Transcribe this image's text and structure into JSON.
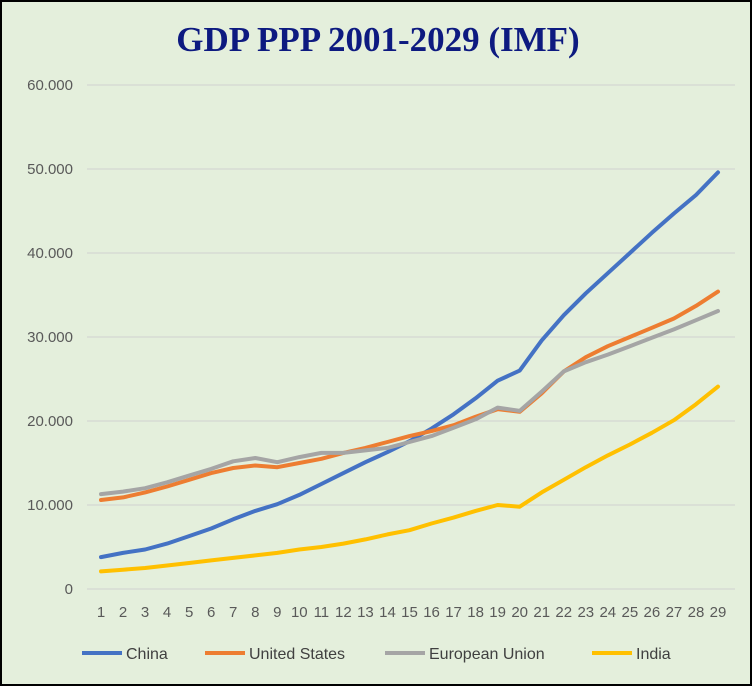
{
  "chart_data": {
    "type": "line",
    "title": "GDP PPP 2001-2029 (IMF)",
    "xlabel": "",
    "ylabel": "",
    "x": [
      "1",
      "2",
      "3",
      "4",
      "5",
      "6",
      "7",
      "8",
      "9",
      "10",
      "11",
      "12",
      "13",
      "14",
      "15",
      "16",
      "17",
      "18",
      "19",
      "20",
      "21",
      "22",
      "23",
      "24",
      "25",
      "26",
      "27",
      "28",
      "29"
    ],
    "y_ticks": [
      "0",
      "10.000",
      "20.000",
      "30.000",
      "40.000",
      "50.000",
      "60.000"
    ],
    "ylim": [
      0,
      60000
    ],
    "grid": "horizontal",
    "legend_position": "bottom",
    "series": [
      {
        "name": "China",
        "color": "#4472c4",
        "values": [
          3800,
          4300,
          4700,
          5400,
          6300,
          7200,
          8300,
          9300,
          10100,
          11200,
          12500,
          13800,
          15100,
          16300,
          17600,
          19100,
          20800,
          22700,
          24800,
          26000,
          29600,
          32600,
          35200,
          37600,
          40000,
          42400,
          44700,
          46900,
          49600
        ]
      },
      {
        "name": "United States",
        "color": "#ed7d31",
        "values": [
          10600,
          10900,
          11500,
          12200,
          13000,
          13800,
          14400,
          14700,
          14500,
          15000,
          15500,
          16200,
          16800,
          17500,
          18200,
          18800,
          19500,
          20500,
          21400,
          21100,
          23300,
          25900,
          27600,
          28900,
          30000,
          31100,
          32200,
          33700,
          35400
        ]
      },
      {
        "name": "European Union",
        "color": "#a5a5a5",
        "values": [
          11300,
          11600,
          12000,
          12700,
          13500,
          14300,
          15200,
          15600,
          15100,
          15700,
          16200,
          16200,
          16500,
          16800,
          17500,
          18200,
          19200,
          20200,
          21600,
          21200,
          23500,
          25900,
          27000,
          27900,
          28900,
          29900,
          30900,
          32000,
          33100
        ]
      },
      {
        "name": "India",
        "color": "#ffc000",
        "values": [
          2100,
          2300,
          2500,
          2800,
          3100,
          3400,
          3700,
          4000,
          4300,
          4700,
          5000,
          5400,
          5900,
          6500,
          7000,
          7800,
          8500,
          9300,
          10000,
          9800,
          11500,
          13000,
          14500,
          15900,
          17200,
          18600,
          20100,
          22000,
          24100
        ]
      }
    ]
  }
}
